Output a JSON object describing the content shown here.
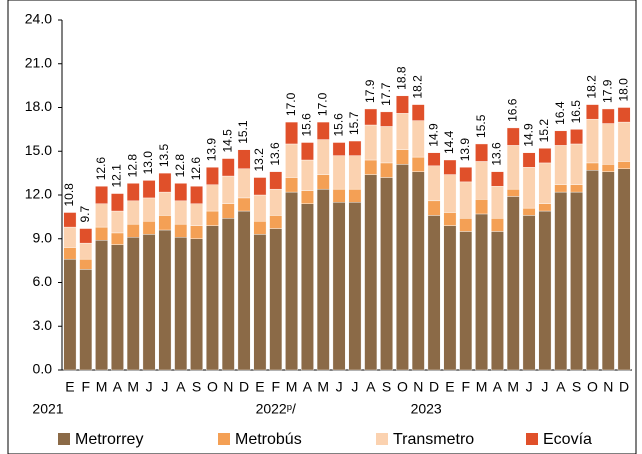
{
  "chart_data": {
    "type": "stacked-bar",
    "categories": [
      "E",
      "F",
      "M",
      "A",
      "M",
      "J",
      "J",
      "A",
      "S",
      "O",
      "N",
      "D",
      "E",
      "F",
      "M",
      "A",
      "M",
      "J",
      "J",
      "A",
      "S",
      "O",
      "N",
      "D",
      "E",
      "F",
      "M",
      "A",
      "M",
      "J",
      "J",
      "A",
      "S",
      "O",
      "N",
      "D"
    ],
    "year_labels": [
      "2021",
      "2022ᵖ/",
      "2023"
    ],
    "series": [
      {
        "name": "Metrorrey",
        "color": "#8b6a47",
        "values": [
          7.6,
          6.9,
          8.9,
          8.6,
          9.1,
          9.3,
          9.6,
          9.1,
          9.0,
          9.9,
          10.4,
          10.9,
          9.3,
          9.7,
          12.2,
          11.4,
          12.4,
          11.5,
          11.5,
          13.4,
          13.2,
          14.1,
          13.6,
          10.6,
          9.9,
          9.5,
          10.7,
          9.5,
          11.9,
          10.6,
          10.9,
          12.2,
          12.2,
          13.7,
          13.6,
          13.8
        ]
      },
      {
        "name": "Metrobús",
        "color": "#f4a055",
        "values": [
          0.8,
          0.7,
          0.9,
          0.8,
          0.9,
          0.9,
          1.0,
          0.9,
          0.9,
          1.0,
          1.0,
          0.9,
          0.9,
          0.9,
          1.0,
          0.9,
          1.0,
          0.9,
          0.9,
          1.0,
          1.0,
          1.0,
          1.0,
          1.0,
          0.9,
          0.9,
          1.0,
          0.9,
          0.5,
          0.5,
          0.5,
          0.5,
          0.5,
          0.5,
          0.5,
          0.5
        ]
      },
      {
        "name": "Transmetro",
        "color": "#fbd2b0",
        "values": [
          1.4,
          1.1,
          1.6,
          1.5,
          1.6,
          1.6,
          1.6,
          1.6,
          1.5,
          1.8,
          1.9,
          2.0,
          1.8,
          1.8,
          2.3,
          2.1,
          2.4,
          2.3,
          2.3,
          2.4,
          2.5,
          2.5,
          2.5,
          2.4,
          2.6,
          2.5,
          2.6,
          2.2,
          3.0,
          2.8,
          2.8,
          2.7,
          2.8,
          3.0,
          2.8,
          2.7
        ]
      },
      {
        "name": "Ecovía",
        "color": "#e0502a",
        "values": [
          1.0,
          1.0,
          1.2,
          1.2,
          1.2,
          1.2,
          1.3,
          1.2,
          1.2,
          1.2,
          1.2,
          1.3,
          1.2,
          1.2,
          1.5,
          1.2,
          1.2,
          0.9,
          1.0,
          1.1,
          1.0,
          1.2,
          1.1,
          0.9,
          1.0,
          1.0,
          1.2,
          1.0,
          1.2,
          1.0,
          1.0,
          1.0,
          1.0,
          1.0,
          1.0,
          1.0
        ]
      }
    ],
    "totals": {
      "values": [
        10.8,
        9.7,
        12.6,
        12.1,
        12.8,
        13.0,
        13.5,
        12.8,
        12.6,
        13.9,
        14.5,
        15.1,
        13.2,
        13.6,
        17.0,
        15.6,
        17.0,
        15.6,
        15.7,
        17.9,
        17.7,
        18.8,
        18.2,
        14.9,
        14.4,
        13.9,
        15.5,
        13.6,
        16.6,
        14.9,
        15.2,
        16.4,
        16.5,
        18.2,
        17.9,
        18.0
      ],
      "value_labels": [
        "10.8",
        "9.7",
        "12.6",
        "12.1",
        "12.8",
        "13.0",
        "13.5",
        "12.8",
        "12.6",
        "13.9",
        "14.5",
        "15.1",
        "13.2",
        "13.6",
        "17.0",
        "15.6",
        "17.0",
        "15.6",
        "15.7",
        "17.9",
        "17.7",
        "18.8",
        "18.2",
        "14.9",
        "14.4",
        "13.9",
        "15.5",
        "13.6",
        "16.6",
        "14.9",
        "15.2",
        "16.4",
        "16.5",
        "18.2",
        "17.9",
        "18.0"
      ]
    },
    "ylim": [
      0,
      24
    ],
    "yticks": [
      {
        "value": 0,
        "label": "0.0"
      },
      {
        "value": 3,
        "label": "3.0"
      },
      {
        "value": 6,
        "label": "6.0"
      },
      {
        "value": 9,
        "label": "9.0"
      },
      {
        "value": 12,
        "label": "12.0"
      },
      {
        "value": 15,
        "label": "15.0"
      },
      {
        "value": 18,
        "label": "18.0"
      },
      {
        "value": 21,
        "label": "21.0"
      },
      {
        "value": 24,
        "label": "24.0"
      }
    ],
    "legend": "bottom"
  }
}
